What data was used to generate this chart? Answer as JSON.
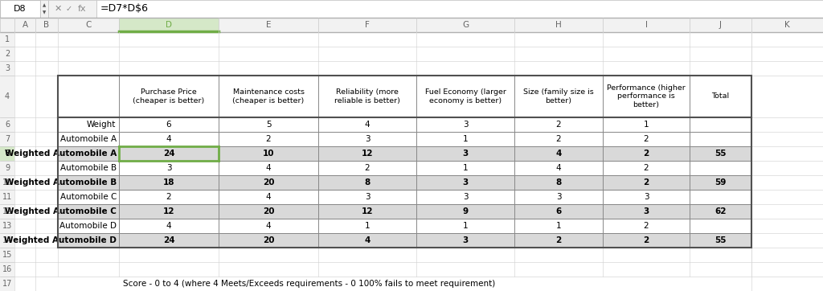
{
  "formula_bar_text": "=D7*D$6",
  "cell_ref": "D8",
  "col_headers": [
    "",
    "Purchase Price\n(cheaper is better)",
    "Maintenance costs\n(cheaper is better)",
    "Reliability (more\nreliable is better)",
    "Fuel Economy (larger\neconomy is better)",
    "Size (family size is\nbetter)",
    "Performance (higher\nperformance is\nbetter)",
    "Total"
  ],
  "weight_row": [
    "Weight",
    "6",
    "5",
    "4",
    "3",
    "2",
    "1",
    ""
  ],
  "rows": [
    {
      "label": "Automobile A",
      "values": [
        "4",
        "2",
        "3",
        "1",
        "2",
        "2",
        ""
      ],
      "weighted": false
    },
    {
      "label": "Weighted Automobile A",
      "values": [
        "24",
        "10",
        "12",
        "3",
        "4",
        "2",
        "55"
      ],
      "weighted": true
    },
    {
      "label": "Automobile B",
      "values": [
        "3",
        "4",
        "2",
        "1",
        "4",
        "2",
        ""
      ],
      "weighted": false
    },
    {
      "label": "Weighted Automobile B",
      "values": [
        "18",
        "20",
        "8",
        "3",
        "8",
        "2",
        "59"
      ],
      "weighted": true
    },
    {
      "label": "Automobile C",
      "values": [
        "2",
        "4",
        "3",
        "3",
        "3",
        "3",
        ""
      ],
      "weighted": false
    },
    {
      "label": "Weighted Automobile C",
      "values": [
        "12",
        "20",
        "12",
        "9",
        "6",
        "3",
        "62"
      ],
      "weighted": true
    },
    {
      "label": "Automobile D",
      "values": [
        "4",
        "4",
        "1",
        "1",
        "1",
        "2",
        ""
      ],
      "weighted": false
    },
    {
      "label": "Weighted Automobile D",
      "values": [
        "24",
        "20",
        "4",
        "3",
        "2",
        "2",
        "55"
      ],
      "weighted": true
    }
  ],
  "footnote": "Score - 0 to 4 (where 4 Meets/Exceeds requirements - 0 100% fails to meet requirement)",
  "weighted_bg": "#d9d9d9",
  "normal_bg": "#ffffff",
  "header_bg": "#f2f2f2",
  "highlight_green": "#70ad47",
  "highlight_green_light": "#e2efda",
  "excel_col_header_bg": "#f2f2f2",
  "excel_row_bg": "#f2f2f2",
  "selected_row_bg": "#d5e8c8",
  "grid_light": "#d0d0d0",
  "grid_dark": "#888888",
  "text_dark": "#000000",
  "text_gray": "#666666"
}
